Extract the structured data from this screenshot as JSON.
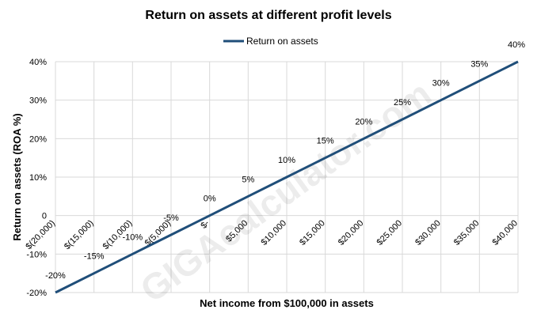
{
  "watermark": "GIGAcalculator.com",
  "chart_data": {
    "type": "line",
    "title": "Return on assets at different profit levels",
    "xlabel": "Net income from $100,000 in assets",
    "ylabel": "Return on assets (ROA %)",
    "categories": [
      "$(20,000)",
      "$(15,000)",
      "$(10,000)",
      "$(5,000)",
      "$-",
      "$5,000",
      "$10,000",
      "$15,000",
      "$20,000",
      "$25,000",
      "$30,000",
      "$35,000",
      "$40,000"
    ],
    "series": [
      {
        "name": "Return on assets",
        "color": "#1f4e79",
        "values": [
          -20,
          -15,
          -10,
          -5,
          0,
          5,
          10,
          15,
          20,
          25,
          30,
          35,
          40
        ],
        "data_labels": [
          "-20%",
          "-15%",
          "-10%",
          "-5%",
          "0%",
          "5%",
          "10%",
          "15%",
          "20%",
          "25%",
          "30%",
          "35%",
          "40%"
        ]
      }
    ],
    "ylim": [
      -20,
      40
    ],
    "yticks": [
      -20,
      -10,
      0,
      10,
      20,
      30,
      40
    ],
    "ytick_labels": [
      "-20%",
      "-10%",
      "0",
      "10%",
      "20%",
      "30%",
      "40%"
    ],
    "grid": true,
    "legend_position": "top"
  }
}
